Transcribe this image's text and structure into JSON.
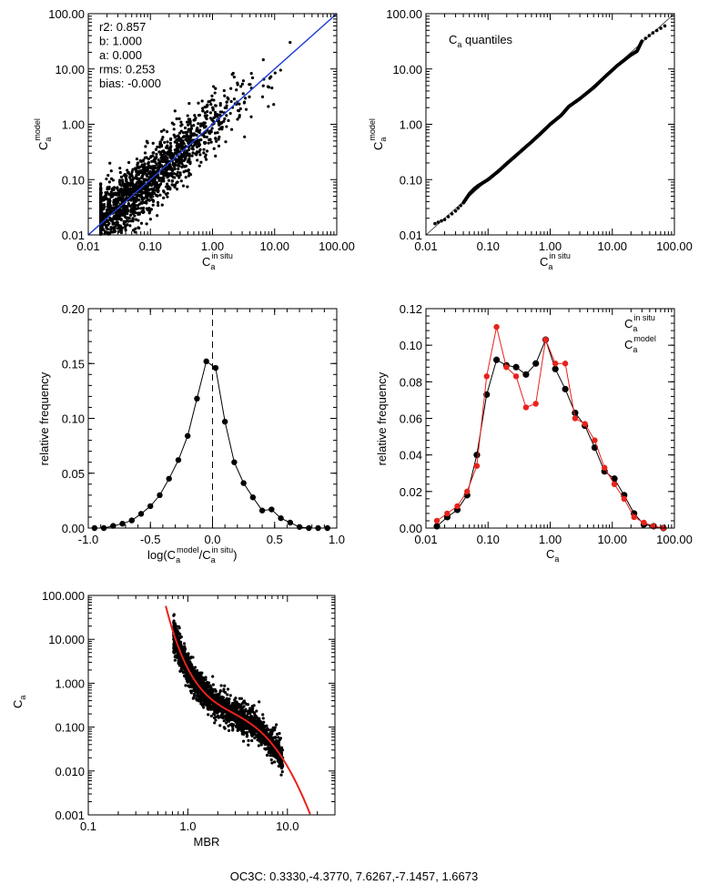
{
  "chart_data": [
    {
      "id": "p1",
      "type": "scatter",
      "xscale": "log",
      "yscale": "log",
      "xlim": [
        0.01,
        100
      ],
      "ylim": [
        0.01,
        100
      ],
      "xticks": [
        "0.01",
        "0.10",
        "1.00",
        "10.00",
        "100.00"
      ],
      "yticks": [
        "0.01",
        "0.10",
        "1.00",
        "10.00",
        "100.00"
      ],
      "xlabel": "C",
      "xlabel_sub": "a",
      "xlabel_sup": "in situ",
      "ylabel": "C",
      "ylabel_sub": "a",
      "ylabel_sup": "model",
      "stats": [
        "r2: 0.857",
        "b: 1.000",
        "a: 0.000",
        "rms: 0.253",
        "bias: -0.000"
      ],
      "fit_line": {
        "x": [
          0.01,
          100
        ],
        "y": [
          0.01,
          100
        ],
        "color": "#1f3fd6"
      },
      "scatter_note": "about 2000 match-up points, model vs in situ chlorophyll"
    },
    {
      "id": "p2",
      "type": "scatter",
      "xscale": "log",
      "yscale": "log",
      "xlim": [
        0.01,
        100
      ],
      "ylim": [
        0.01,
        100
      ],
      "xticks": [
        "0.01",
        "0.10",
        "1.00",
        "10.00",
        "100.00"
      ],
      "yticks": [
        "0.01",
        "0.10",
        "1.00",
        "10.00",
        "100.00"
      ],
      "xlabel": "C",
      "xlabel_sub": "a",
      "xlabel_sup": "in situ",
      "ylabel": "C",
      "ylabel_sub": "a",
      "ylabel_sup": "model",
      "annotation": {
        "main": "C",
        "sub": "a",
        "rest": " quantiles"
      },
      "quantiles": {
        "x": [
          0.014,
          0.02,
          0.03,
          0.04,
          0.05,
          0.06,
          0.07,
          0.1,
          0.15,
          0.2,
          0.3,
          0.5,
          0.7,
          1.0,
          1.5,
          2.0,
          3.0,
          5.0,
          8.0,
          12.0,
          20.0,
          25.0,
          30.0,
          45.0,
          70.0
        ],
        "y": [
          0.016,
          0.019,
          0.027,
          0.038,
          0.055,
          0.068,
          0.078,
          0.1,
          0.145,
          0.195,
          0.29,
          0.48,
          0.68,
          1.0,
          1.45,
          2.1,
          2.9,
          4.6,
          7.6,
          11.5,
          18.0,
          21.0,
          32.0,
          45.0,
          60.0
        ]
      }
    },
    {
      "id": "p3",
      "type": "line",
      "xlim": [
        -1.0,
        1.0
      ],
      "ylim": [
        0.0,
        0.2
      ],
      "xticks": [
        "-1.0",
        "-0.5",
        "0.0",
        "0.5",
        "1.0"
      ],
      "yticks": [
        "0.00",
        "0.05",
        "0.10",
        "0.15",
        "0.20"
      ],
      "ylabel": "relative frequency",
      "xlabel_parts": [
        "log(C",
        "a",
        "model",
        "/C",
        "a",
        "in situ",
        ")"
      ],
      "x": [
        -0.95,
        -0.875,
        -0.8,
        -0.725,
        -0.65,
        -0.575,
        -0.5,
        -0.425,
        -0.35,
        -0.275,
        -0.2,
        -0.125,
        -0.05,
        0.025,
        0.1,
        0.175,
        0.25,
        0.325,
        0.4,
        0.475,
        0.55,
        0.625,
        0.7,
        0.775,
        0.85,
        0.925
      ],
      "y": [
        0.0,
        0.0,
        0.002,
        0.004,
        0.007,
        0.013,
        0.02,
        0.03,
        0.045,
        0.062,
        0.084,
        0.118,
        0.152,
        0.146,
        0.097,
        0.06,
        0.041,
        0.028,
        0.016,
        0.017,
        0.009,
        0.005,
        0.001,
        0.0,
        0.0,
        0.0
      ],
      "vline_x": 0.0
    },
    {
      "id": "p4",
      "type": "line",
      "xscale": "log",
      "xlim": [
        0.01,
        100
      ],
      "ylim": [
        0.0,
        0.12
      ],
      "xticks": [
        "0.01",
        "0.10",
        "1.00",
        "10.00",
        "100.00"
      ],
      "yticks": [
        "0.00",
        "0.02",
        "0.04",
        "0.06",
        "0.08",
        "0.10",
        "0.12"
      ],
      "ylabel": "relative frequency",
      "xlabel": "C",
      "xlabel_sub": "a",
      "series": [
        {
          "name": "in situ",
          "color": "#000000",
          "x": [
            0.015,
            0.022,
            0.032,
            0.046,
            0.066,
            0.095,
            0.137,
            0.197,
            0.283,
            0.408,
            0.587,
            0.845,
            1.21,
            1.75,
            2.52,
            3.62,
            5.21,
            7.5,
            10.8,
            15.5,
            22.4,
            32.2,
            46.3,
            66.7
          ],
          "y": [
            0.001,
            0.006,
            0.01,
            0.018,
            0.04,
            0.073,
            0.092,
            0.089,
            0.088,
            0.084,
            0.09,
            0.103,
            0.087,
            0.076,
            0.063,
            0.056,
            0.044,
            0.031,
            0.027,
            0.018,
            0.008,
            0.002,
            0.001,
            0.0
          ]
        },
        {
          "name": "model",
          "color": "#e8231b",
          "x": [
            0.015,
            0.022,
            0.032,
            0.046,
            0.066,
            0.095,
            0.137,
            0.197,
            0.283,
            0.408,
            0.587,
            0.845,
            1.21,
            1.75,
            2.52,
            3.62,
            5.21,
            7.5,
            10.8,
            15.5,
            22.4,
            32.2,
            46.3,
            66.7
          ],
          "y": [
            0.004,
            0.008,
            0.012,
            0.02,
            0.034,
            0.083,
            0.11,
            0.088,
            0.083,
            0.066,
            0.068,
            0.103,
            0.09,
            0.09,
            0.06,
            0.057,
            0.048,
            0.033,
            0.024,
            0.016,
            0.006,
            0.003,
            0.001,
            0.0
          ]
        }
      ]
    },
    {
      "id": "p5",
      "type": "scatter",
      "xscale": "log",
      "yscale": "log",
      "xlim": [
        0.1,
        30
      ],
      "ylim": [
        0.001,
        100
      ],
      "xticks": [
        "0.1",
        "1.0",
        "10.0"
      ],
      "yticks": [
        "0.001",
        "0.010",
        "0.100",
        "1.000",
        "10.000",
        "100.000"
      ],
      "xlabel": "MBR",
      "ylabel": "C",
      "ylabel_sub": "a",
      "curve_color": "#e8231b",
      "coefficients": [
        0.333,
        -4.377,
        7.6267,
        -7.1457,
        1.6673
      ],
      "scatter_note": "chlorophyll vs maximum band ratio, about 2000 points"
    }
  ],
  "footer": "OC3C:  0.3330,-4.3770, 7.6267,-7.1457, 1.6673"
}
